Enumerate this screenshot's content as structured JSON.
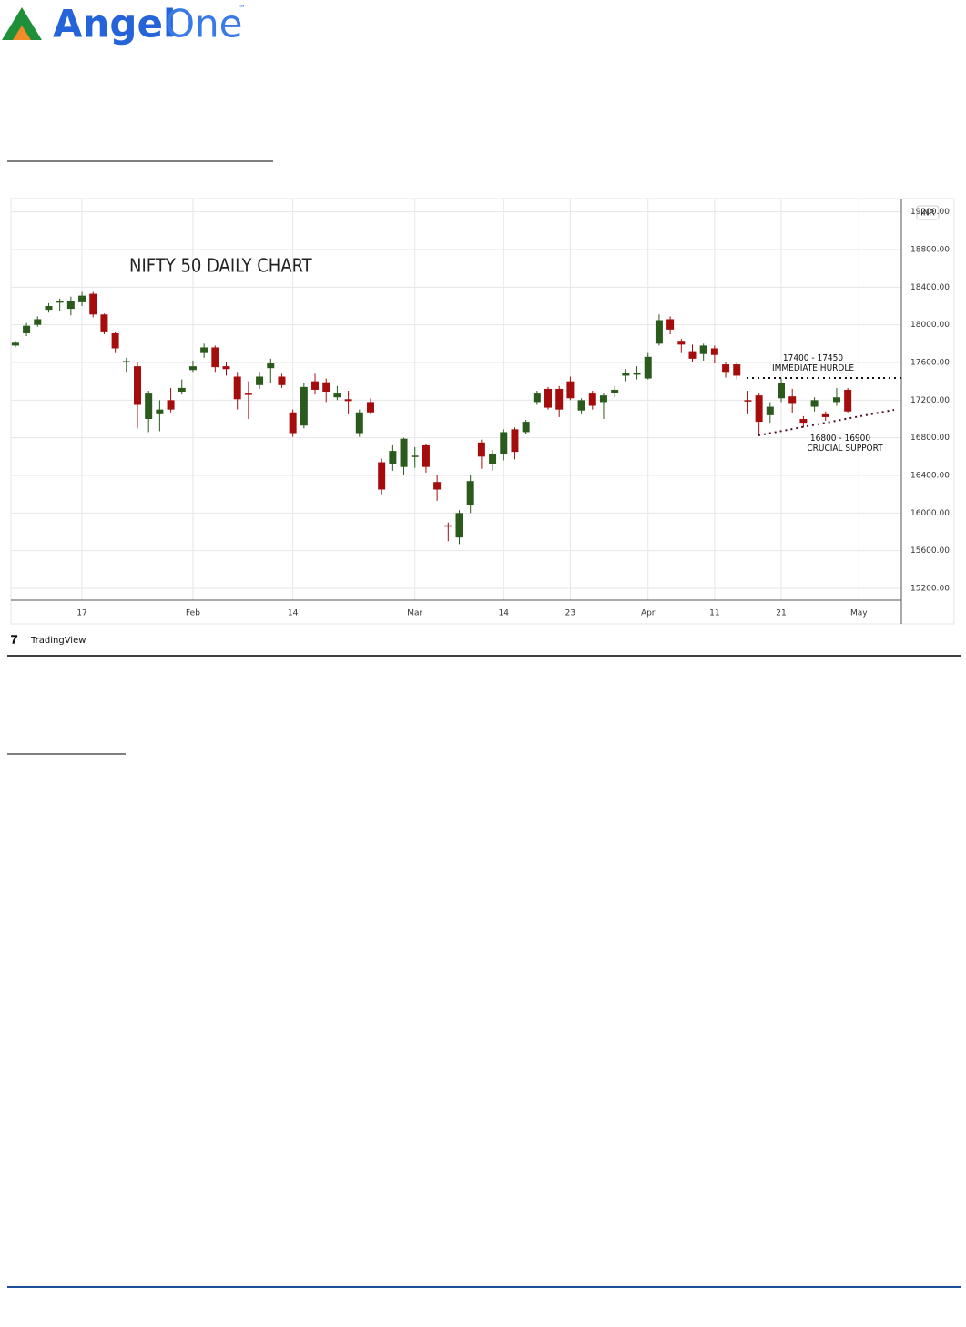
{
  "header": {
    "logo_main": "Angel",
    "logo_accent": "One",
    "logo_mark": "™"
  },
  "chart_data": {
    "type": "candlestick",
    "title": "NIFTY 50 DAILY CHART",
    "categories": [
      null,
      null,
      null,
      null,
      null,
      null,
      "17",
      null,
      null,
      null,
      null,
      null,
      null,
      null,
      null,
      null,
      "Feb",
      null,
      null,
      null,
      null,
      null,
      null,
      null,
      null,
      "14",
      null,
      null,
      null,
      null,
      null,
      null,
      null,
      null,
      null,
      null,
      "Mar",
      null,
      null,
      null,
      null,
      null,
      null,
      null,
      "14",
      null,
      null,
      null,
      null,
      null,
      "23",
      null,
      null,
      null,
      null,
      null,
      null,
      "Apr",
      null,
      null,
      null,
      null,
      null,
      "11",
      null,
      null,
      null,
      null,
      null,
      "21",
      null,
      null,
      null,
      null,
      null,
      null,
      "May"
    ],
    "open": [
      17780,
      17910,
      18000,
      18160,
      18240,
      18170,
      18240,
      18330,
      18110,
      17910,
      17600,
      17560,
      17000,
      17050,
      17200,
      17290,
      17520,
      17700,
      17760,
      17560,
      17450,
      17270,
      17360,
      17540,
      17450,
      17070,
      16930,
      17400,
      17390,
      17230,
      17210,
      16850,
      17180,
      16540,
      16520,
      16490,
      16600,
      16720,
      16330,
      15870,
      15740,
      16080,
      16750,
      16520,
      16630,
      16890,
      16860,
      17180,
      17320,
      17320,
      17400,
      17090,
      17270,
      17180,
      17280,
      17460,
      17470,
      17430,
      17800,
      18060,
      17830,
      17720,
      17690,
      17750,
      17580,
      17580,
      17200,
      17250,
      17040,
      17220,
      17240,
      17000,
      17130,
      17050,
      17180,
      17310,
      null
    ],
    "high": [
      17830,
      18020,
      18090,
      18230,
      18280,
      18300,
      18350,
      18350,
      18120,
      17930,
      17650,
      17600,
      17300,
      17200,
      17330,
      17420,
      17620,
      17800,
      17780,
      17600,
      17500,
      17400,
      17500,
      17640,
      17480,
      17100,
      17380,
      17480,
      17430,
      17350,
      17300,
      17100,
      17220,
      16580,
      16720,
      16800,
      16700,
      16740,
      16400,
      15900,
      16030,
      16400,
      16780,
      16670,
      16890,
      16910,
      16990,
      17300,
      17340,
      17350,
      17450,
      17220,
      17300,
      17280,
      17350,
      17530,
      17560,
      17700,
      18110,
      18090,
      17850,
      17790,
      17800,
      17780,
      17600,
      17600,
      17300,
      17270,
      17180,
      17430,
      17320,
      17030,
      17230,
      17080,
      17330,
      17330,
      null
    ],
    "low": [
      17760,
      17880,
      17980,
      18130,
      18150,
      18100,
      18200,
      18080,
      17900,
      17700,
      17500,
      16900,
      16860,
      16870,
      17070,
      17260,
      17500,
      17650,
      17500,
      17460,
      17100,
      17000,
      17320,
      17380,
      17330,
      16810,
      16900,
      17260,
      17180,
      17200,
      17050,
      16810,
      17050,
      16200,
      16450,
      16400,
      16480,
      16430,
      16130,
      15700,
      15670,
      16000,
      16470,
      16450,
      16560,
      16570,
      16840,
      17150,
      17100,
      17020,
      17200,
      17050,
      17100,
      17000,
      17230,
      17400,
      17420,
      17420,
      17780,
      17900,
      17700,
      17600,
      17620,
      17590,
      17440,
      17420,
      17050,
      16830,
      16960,
      17180,
      17060,
      16910,
      17080,
      16980,
      17140,
      17070,
      null
    ],
    "close": [
      17810,
      17990,
      18060,
      18200,
      18250,
      18250,
      18310,
      18110,
      17930,
      17750,
      17615,
      17150,
      17270,
      17100,
      17100,
      17330,
      17560,
      17760,
      17550,
      17530,
      17210,
      17260,
      17450,
      17590,
      17360,
      16850,
      17340,
      17310,
      17290,
      17270,
      17190,
      17070,
      17070,
      16250,
      16660,
      16790,
      16610,
      16490,
      16250,
      15860,
      16000,
      16340,
      16600,
      16630,
      16860,
      16650,
      16970,
      17270,
      17120,
      17100,
      17220,
      17200,
      17140,
      17250,
      17310,
      17490,
      17490,
      17660,
      18050,
      17950,
      17790,
      17640,
      17780,
      17680,
      17500,
      17460,
      17190,
      16970,
      17130,
      17380,
      17160,
      16960,
      17200,
      17020,
      17230,
      17080,
      null
    ],
    "ylim": [
      15074,
      19342
    ],
    "yticks": [
      {
        "value": 15200,
        "label": "15200.00"
      },
      {
        "value": 15600,
        "label": "15600.00"
      },
      {
        "value": 16000,
        "label": "16000.00"
      },
      {
        "value": 16400,
        "label": "16400.00"
      },
      {
        "value": 16800,
        "label": "16800.00"
      },
      {
        "value": 17200,
        "label": "17200.00"
      },
      {
        "value": 17600,
        "label": "17600.00"
      },
      {
        "value": 18000,
        "label": "18000.00"
      },
      {
        "value": 18400,
        "label": "18400.00"
      },
      {
        "value": 18800,
        "label": "18800.00"
      },
      {
        "value": 19200,
        "label": "19200.00"
      }
    ],
    "grid": true,
    "up_color": "#2a5a1c",
    "down_color": "#a50d0d",
    "currency": "INR",
    "annotations": [
      "17400 - 17450",
      "IMMEDIATE HURDLE",
      "16800 - 16900",
      "CRUCIAL SUPPORT"
    ],
    "source": "TradingView"
  }
}
